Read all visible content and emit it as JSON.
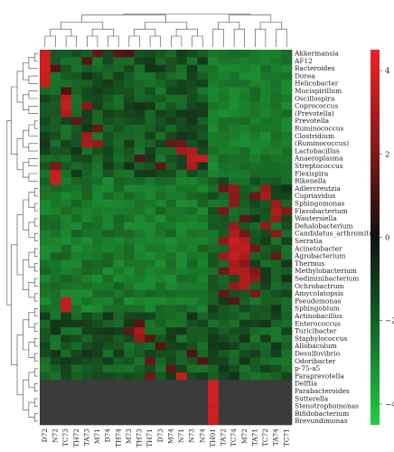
{
  "chart_data": {
    "type": "heatmap",
    "title": "",
    "colorbar": {
      "min": -4.5,
      "max": 4.5,
      "ticks": [
        4,
        2,
        0,
        -2,
        -4
      ],
      "low_color": "#22cc44",
      "mid_color": "#101010",
      "high_color": "#ee2222"
    },
    "columns": [
      "D72",
      "N72",
      "TC73",
      "TH72",
      "TA73",
      "M71",
      "D74",
      "TH74",
      "M73",
      "TH73",
      "TH71",
      "D73",
      "M74",
      "N71",
      "N73",
      "N74",
      "TH01",
      "TA72",
      "TC74",
      "M72",
      "TA71",
      "TC72",
      "TA74",
      "TC71"
    ],
    "rows": [
      "Akkermansia",
      "AF12",
      "Bacteroides",
      "Dorea",
      "Helicobacter",
      "Mucispirillum",
      "Oscillospira",
      "Coprococcus",
      "(Prevotella)",
      "Prevotella",
      "Ruminococcus",
      "Clostridium",
      "(Ruminococcus)",
      "Lactobacillus",
      "Anaeroplasma",
      "Streptococcus",
      "Flexispira",
      "Rikenella",
      "Adlercreutzia",
      "Cupriavidus",
      "Sphingomonas",
      "Flavobacterium",
      "Wautersiella",
      "Dehalobacterium",
      "Candidatus_arthromitus",
      "Serratia",
      "Acinetobacter",
      "Agrobacterium",
      "Thermus",
      "Methylobacterium",
      "Sediminibacterium",
      "Ochrobactrum",
      "Amycolatopsis",
      "Pseudomonas",
      "Sphingobium",
      "Actinobacillus",
      "Enterococcus",
      "Turicibacter",
      "Staphylococcus",
      "Allobaculum",
      "Desulfovibrio",
      "Odoribacter",
      "p-75-a5",
      "Paraprevotella",
      "Delftia",
      "Parabacteroides",
      "Sutterella",
      "Stenotrophomonas",
      "Bifidobacterium",
      "Brevundimonas"
    ],
    "highlights": [
      {
        "row": 0,
        "col": 0,
        "v": 3.6
      },
      {
        "row": 1,
        "col": 0,
        "v": 3.8
      },
      {
        "row": 2,
        "col": 0,
        "v": 3.8
      },
      {
        "row": 3,
        "col": 0,
        "v": 3.6
      },
      {
        "row": 4,
        "col": 0,
        "v": 3.5
      },
      {
        "row": 0,
        "col": 5,
        "v": 1.3
      },
      {
        "row": 0,
        "col": 7,
        "v": 1.1
      },
      {
        "row": 0,
        "col": 8,
        "v": 0.9
      },
      {
        "row": 1,
        "col": 4,
        "v": 1.0
      },
      {
        "row": 2,
        "col": 1,
        "v": 1.0
      },
      {
        "row": 5,
        "col": 2,
        "v": 0.9
      },
      {
        "row": 6,
        "col": 2,
        "v": 3.3
      },
      {
        "row": 7,
        "col": 2,
        "v": 3.5
      },
      {
        "row": 8,
        "col": 2,
        "v": 3.0
      },
      {
        "row": 7,
        "col": 4,
        "v": 2.2
      },
      {
        "row": 9,
        "col": 3,
        "v": 1.4
      },
      {
        "row": 10,
        "col": 5,
        "v": 1.5
      },
      {
        "row": 11,
        "col": 4,
        "v": 2.7
      },
      {
        "row": 12,
        "col": 4,
        "v": 2.9
      },
      {
        "row": 12,
        "col": 5,
        "v": 2.4
      },
      {
        "row": 12,
        "col": 12,
        "v": 1.4
      },
      {
        "row": 12,
        "col": 13,
        "v": 1.6
      },
      {
        "row": 13,
        "col": 13,
        "v": 2.8
      },
      {
        "row": 13,
        "col": 14,
        "v": 3.0
      },
      {
        "row": 14,
        "col": 14,
        "v": 3.3
      },
      {
        "row": 14,
        "col": 15,
        "v": 3.4
      },
      {
        "row": 15,
        "col": 14,
        "v": 2.9
      },
      {
        "row": 15,
        "col": 11,
        "v": 1.2
      },
      {
        "row": 14,
        "col": 9,
        "v": 1.0
      },
      {
        "row": 15,
        "col": 1,
        "v": 1.8
      },
      {
        "row": 16,
        "col": 1,
        "v": 3.5
      },
      {
        "row": 17,
        "col": 1,
        "v": 3.6
      },
      {
        "row": 18,
        "col": 17,
        "v": 1.5
      },
      {
        "row": 18,
        "col": 18,
        "v": 2.4
      },
      {
        "row": 18,
        "col": 21,
        "v": 2.5
      },
      {
        "row": 19,
        "col": 18,
        "v": 2.2
      },
      {
        "row": 19,
        "col": 20,
        "v": 1.5
      },
      {
        "row": 19,
        "col": 21,
        "v": 2.8
      },
      {
        "row": 20,
        "col": 18,
        "v": 2.3
      },
      {
        "row": 20,
        "col": 22,
        "v": 2.5
      },
      {
        "row": 21,
        "col": 17,
        "v": 1.8
      },
      {
        "row": 21,
        "col": 22,
        "v": 3.0
      },
      {
        "row": 21,
        "col": 23,
        "v": 2.0
      },
      {
        "row": 22,
        "col": 19,
        "v": 1.3
      },
      {
        "row": 22,
        "col": 22,
        "v": 2.6
      },
      {
        "row": 23,
        "col": 18,
        "v": 2.5
      },
      {
        "row": 23,
        "col": 21,
        "v": 2.3
      },
      {
        "row": 24,
        "col": 18,
        "v": 3.0
      },
      {
        "row": 24,
        "col": 19,
        "v": 1.7
      },
      {
        "row": 24,
        "col": 22,
        "v": 2.2
      },
      {
        "row": 25,
        "col": 17,
        "v": 2.3
      },
      {
        "row": 25,
        "col": 18,
        "v": 3.6
      },
      {
        "row": 25,
        "col": 19,
        "v": 3.0
      },
      {
        "row": 26,
        "col": 18,
        "v": 3.2
      },
      {
        "row": 26,
        "col": 19,
        "v": 3.4
      },
      {
        "row": 26,
        "col": 20,
        "v": 1.6
      },
      {
        "row": 27,
        "col": 17,
        "v": 2.6
      },
      {
        "row": 27,
        "col": 18,
        "v": 3.4
      },
      {
        "row": 27,
        "col": 19,
        "v": 2.9
      },
      {
        "row": 27,
        "col": 22,
        "v": 1.4
      },
      {
        "row": 28,
        "col": 18,
        "v": 2.8
      },
      {
        "row": 28,
        "col": 19,
        "v": 2.2
      },
      {
        "row": 29,
        "col": 17,
        "v": 1.6
      },
      {
        "row": 29,
        "col": 18,
        "v": 3.0
      },
      {
        "row": 29,
        "col": 19,
        "v": 3.0
      },
      {
        "row": 29,
        "col": 20,
        "v": 2.0
      },
      {
        "row": 30,
        "col": 19,
        "v": 3.2
      },
      {
        "row": 30,
        "col": 20,
        "v": 2.4
      },
      {
        "row": 31,
        "col": 18,
        "v": 2.4
      },
      {
        "row": 31,
        "col": 19,
        "v": 3.0
      },
      {
        "row": 32,
        "col": 17,
        "v": 1.4
      },
      {
        "row": 32,
        "col": 20,
        "v": 1.8
      },
      {
        "row": 33,
        "col": 2,
        "v": 3.4
      },
      {
        "row": 34,
        "col": 2,
        "v": 3.3
      },
      {
        "row": 33,
        "col": 18,
        "v": 1.2
      },
      {
        "row": 36,
        "col": 9,
        "v": 1.0
      },
      {
        "row": 37,
        "col": 9,
        "v": 2.9
      },
      {
        "row": 37,
        "col": 8,
        "v": 1.3
      },
      {
        "row": 38,
        "col": 9,
        "v": 2.4
      },
      {
        "row": 38,
        "col": 10,
        "v": 1.1
      },
      {
        "row": 39,
        "col": 11,
        "v": 1.0
      },
      {
        "row": 41,
        "col": 10,
        "v": 1.4
      },
      {
        "row": 42,
        "col": 12,
        "v": 1.2
      },
      {
        "row": 43,
        "col": 13,
        "v": 3.5
      },
      {
        "row": 43,
        "col": 10,
        "v": 1.6
      },
      {
        "row": 44,
        "col": 16,
        "v": 3.7
      },
      {
        "row": 45,
        "col": 16,
        "v": 3.8
      },
      {
        "row": 46,
        "col": 16,
        "v": 3.8
      },
      {
        "row": 47,
        "col": 16,
        "v": 3.7
      },
      {
        "row": 48,
        "col": 16,
        "v": 3.8
      },
      {
        "row": 49,
        "col": 16,
        "v": 3.6
      },
      {
        "row": 41,
        "col": 15,
        "v": 1.0
      },
      {
        "row": 40,
        "col": 14,
        "v": 0.9
      }
    ]
  }
}
